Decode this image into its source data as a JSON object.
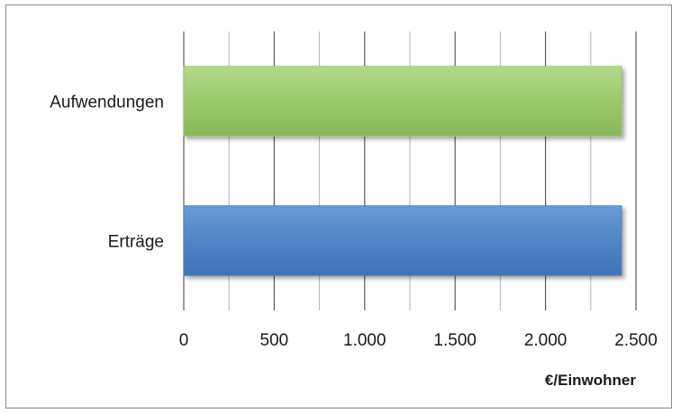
{
  "chart_data": {
    "type": "bar",
    "orientation": "horizontal",
    "categories": [
      "Aufwendungen",
      "Erträge"
    ],
    "values": [
      2420,
      2420
    ],
    "colors": [
      "#9bc96b",
      "#4f86c6"
    ],
    "xlabel": "€/Einwohner",
    "xlim": [
      0,
      2500
    ],
    "xticks": [
      0,
      500,
      1000,
      1500,
      2000,
      2500
    ],
    "xtick_labels": [
      "0",
      "500",
      "1.000",
      "1.500",
      "2.000",
      "2.500"
    ],
    "grid": true
  }
}
